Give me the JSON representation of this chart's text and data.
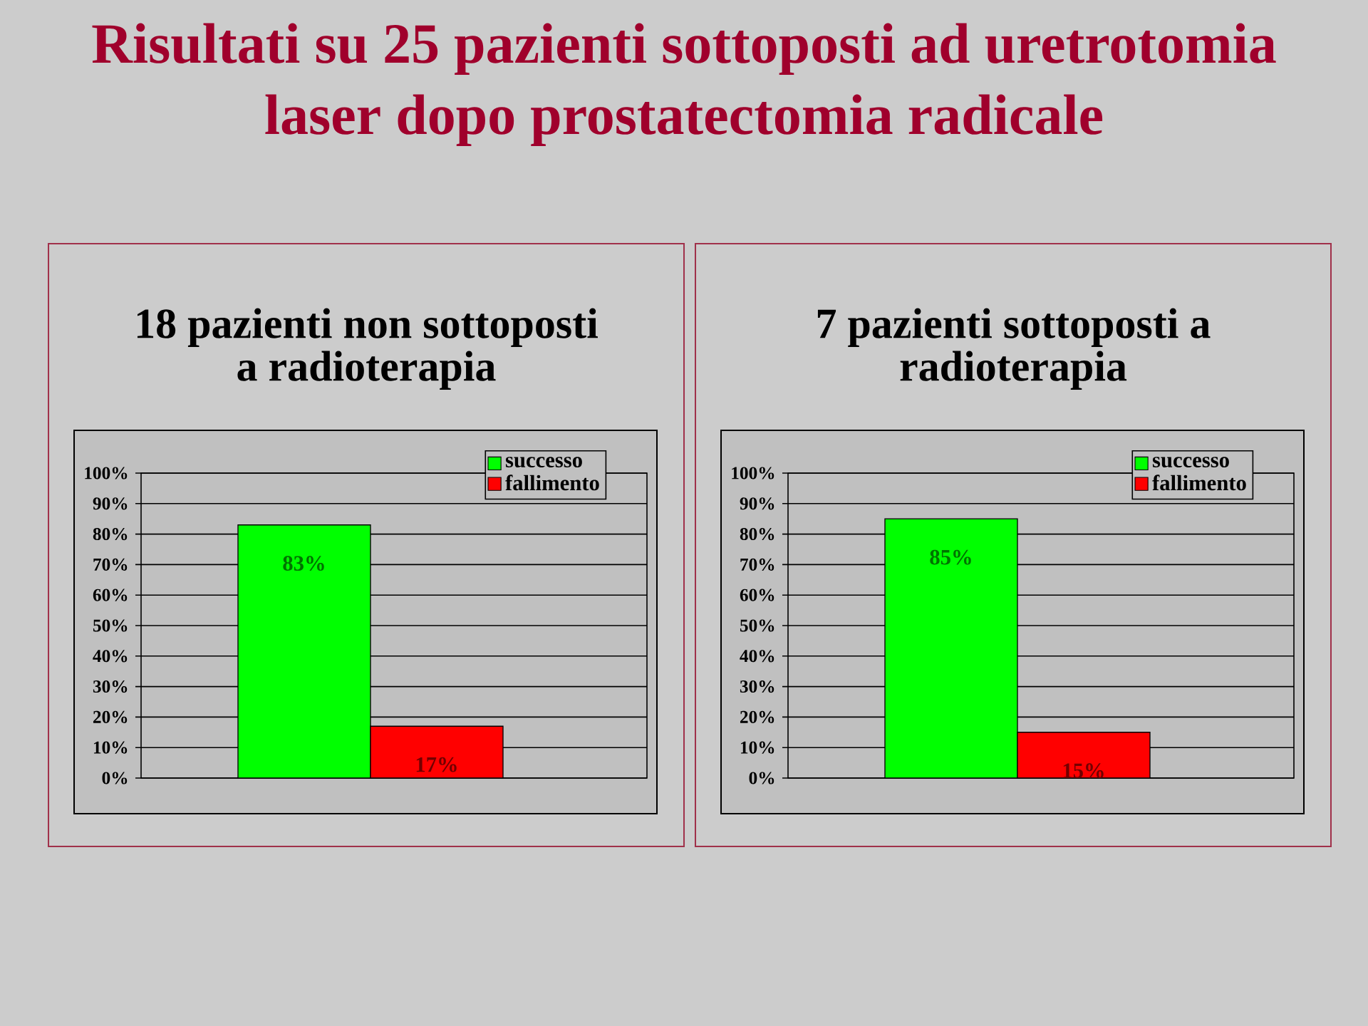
{
  "chart_data": [
    {
      "type": "other",
      "title": "Risultati su 25 pazienti sottoposti ad uretrotomia laser dopo prostatectomia radicale"
    },
    {
      "type": "bar",
      "title": "18 pazienti non sottoposti a radioterapia",
      "categories": [
        null
      ],
      "series": [
        {
          "name": "successo",
          "color": "#00ff00",
          "values": [
            83
          ],
          "value_labels": [
            "83%"
          ]
        },
        {
          "name": "fallimento",
          "color": "#ff0000",
          "values": [
            17
          ],
          "value_labels": [
            "17%"
          ]
        }
      ],
      "ylim": [
        0,
        100
      ],
      "yticks": [
        {
          "value": 0,
          "label": "0%"
        },
        {
          "value": 10,
          "label": "10%"
        },
        {
          "value": 20,
          "label": "20%"
        },
        {
          "value": 30,
          "label": "30%"
        },
        {
          "value": 40,
          "label": "40%"
        },
        {
          "value": 50,
          "label": "50%"
        },
        {
          "value": 60,
          "label": "60%"
        },
        {
          "value": 70,
          "label": "70%"
        },
        {
          "value": 80,
          "label": "80%"
        },
        {
          "value": 90,
          "label": "90%"
        },
        {
          "value": 100,
          "label": "100%"
        }
      ],
      "grid": "y",
      "legend": "top right"
    },
    {
      "type": "bar",
      "title": "7 pazienti sottoposti a radioterapia",
      "categories": [
        null
      ],
      "series": [
        {
          "name": "successo",
          "color": "#00ff00",
          "values": [
            85
          ],
          "value_labels": [
            "85%"
          ]
        },
        {
          "name": "fallimento",
          "color": "#ff0000",
          "values": [
            15
          ],
          "value_labels": [
            "15%"
          ]
        }
      ],
      "ylim": [
        0,
        100
      ],
      "yticks": [
        {
          "value": 0,
          "label": "0%"
        },
        {
          "value": 10,
          "label": "10%"
        },
        {
          "value": 20,
          "label": "20%"
        },
        {
          "value": 30,
          "label": "30%"
        },
        {
          "value": 40,
          "label": "40%"
        },
        {
          "value": 50,
          "label": "50%"
        },
        {
          "value": 60,
          "label": "60%"
        },
        {
          "value": 70,
          "label": "70%"
        },
        {
          "value": 80,
          "label": "80%"
        },
        {
          "value": 90,
          "label": "90%"
        },
        {
          "value": 100,
          "label": "100%"
        }
      ],
      "grid": "y",
      "legend": "top right"
    }
  ]
}
